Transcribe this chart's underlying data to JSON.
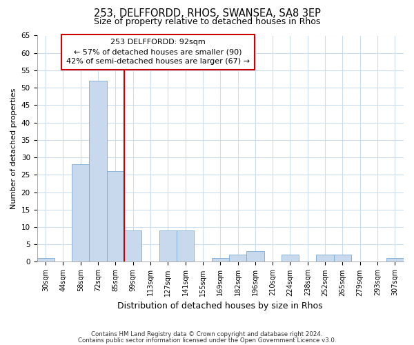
{
  "title": "253, DELFFORDD, RHOS, SWANSEA, SA8 3EP",
  "subtitle": "Size of property relative to detached houses in Rhos",
  "xlabel": "Distribution of detached houses by size in Rhos",
  "ylabel": "Number of detached properties",
  "footer_line1": "Contains HM Land Registry data © Crown copyright and database right 2024.",
  "footer_line2": "Contains public sector information licensed under the Open Government Licence v3.0.",
  "bin_labels": [
    "30sqm",
    "44sqm",
    "58sqm",
    "72sqm",
    "85sqm",
    "99sqm",
    "113sqm",
    "127sqm",
    "141sqm",
    "155sqm",
    "169sqm",
    "182sqm",
    "196sqm",
    "210sqm",
    "224sqm",
    "238sqm",
    "252sqm",
    "265sqm",
    "279sqm",
    "293sqm",
    "307sqm"
  ],
  "bar_heights": [
    1,
    0,
    28,
    52,
    26,
    9,
    0,
    9,
    9,
    0,
    1,
    2,
    3,
    0,
    2,
    0,
    2,
    2,
    0,
    0,
    1
  ],
  "bar_color": "#c8d9ee",
  "bar_edge_color": "#7bacd4",
  "vline_x": 4.5,
  "vline_color": "#cc0000",
  "annotation_title": "253 DELFFORDD: 92sqm",
  "annotation_line1": "← 57% of detached houses are smaller (90)",
  "annotation_line2": "42% of semi-detached houses are larger (67) →",
  "annotation_box_color": "#ffffff",
  "annotation_box_edge": "#cc0000",
  "ylim": [
    0,
    65
  ],
  "yticks": [
    0,
    5,
    10,
    15,
    20,
    25,
    30,
    35,
    40,
    45,
    50,
    55,
    60,
    65
  ],
  "background_color": "#ffffff",
  "grid_color": "#ccddee"
}
